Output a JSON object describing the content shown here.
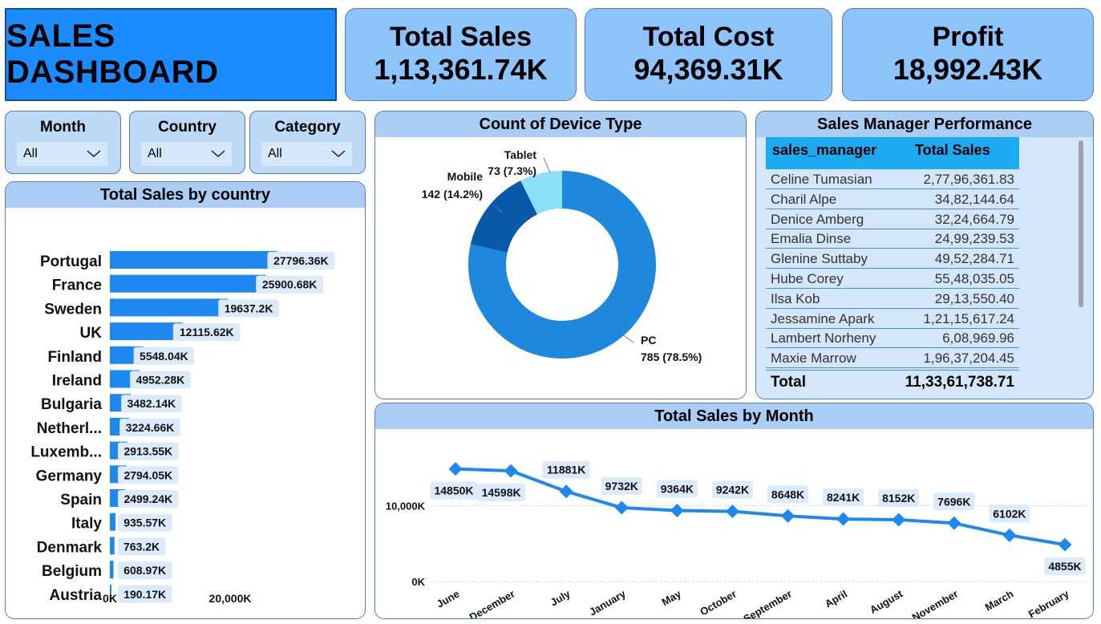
{
  "title": "SALES DASHBOARD",
  "kpis": [
    {
      "label": "Total Sales",
      "value": "1,13,361.74K"
    },
    {
      "label": "Total Cost",
      "value": "94,369.31K"
    },
    {
      "label": "Profit",
      "value": "18,992.43K"
    }
  ],
  "slicers": [
    {
      "label": "Month",
      "value": "All"
    },
    {
      "label": "Country",
      "value": "All"
    },
    {
      "label": "Category",
      "value": "All"
    }
  ],
  "colors": {
    "accent": "#1a8cff",
    "bar": "#1e88f0",
    "panel_header": "#a9cdf5",
    "donut_pc": "#1e88dc",
    "donut_mobile": "#0a58a8",
    "donut_tablet": "#8be0f8"
  },
  "country_chart": {
    "title": "Total Sales by country",
    "ticks": [
      "0K",
      "20,000K"
    ],
    "chart_data": {
      "type": "bar",
      "orientation": "horizontal",
      "categories": [
        "Portugal",
        "France",
        "Sweden",
        "UK",
        "Finland",
        "Ireland",
        "Bulgaria",
        "Netherl...",
        "Luxemb...",
        "Germany",
        "Spain",
        "Italy",
        "Denmark",
        "Belgium",
        "Austria"
      ],
      "values": [
        27796.36,
        25900.68,
        19637.2,
        12115.62,
        5548.04,
        4952.28,
        3482.14,
        3224.66,
        2913.55,
        2794.05,
        2499.24,
        935.57,
        763.2,
        608.97,
        190.17
      ],
      "labels": [
        "27796.36K",
        "25900.68K",
        "19637.2K",
        "12115.62K",
        "5548.04K",
        "4952.28K",
        "3482.14K",
        "3224.66K",
        "2913.55K",
        "2794.05K",
        "2499.24K",
        "935.57K",
        "763.2K",
        "608.97K",
        "190.17K"
      ],
      "xlim": [
        0,
        28000
      ]
    }
  },
  "device_chart": {
    "title": "Count of Device Type",
    "chart_data": {
      "type": "pie",
      "donut": true,
      "slices": [
        {
          "name": "PC",
          "value": 785,
          "label": "785 (78.5%)"
        },
        {
          "name": "Mobile",
          "value": 142,
          "label": "142 (14.2%)"
        },
        {
          "name": "Tablet",
          "value": 73,
          "label": "73 (7.3%)"
        }
      ]
    }
  },
  "manager_table": {
    "title": "Sales Manager Performance",
    "headers": [
      "sales_manager",
      "Total Sales"
    ],
    "rows": [
      {
        "name": "Celine Tumasian",
        "value": "2,77,96,361.83"
      },
      {
        "name": "Charil Alpe",
        "value": "34,82,144.64"
      },
      {
        "name": "Denice Amberg",
        "value": "32,24,664.79"
      },
      {
        "name": "Emalia Dinse",
        "value": "24,99,239.53"
      },
      {
        "name": "Glenine Suttaby",
        "value": "49,52,284.71"
      },
      {
        "name": "Hube Corey",
        "value": "55,48,035.05"
      },
      {
        "name": "Ilsa Kob",
        "value": "29,13,550.40"
      },
      {
        "name": "Jessamine Apark",
        "value": "1,21,15,617.24"
      },
      {
        "name": "Lambert Norheny",
        "value": "6,08,969.96"
      },
      {
        "name": "Maxie Marrow",
        "value": "1,96,37,204.45"
      }
    ],
    "total_label": "Total",
    "total_value": "11,33,61,738.71"
  },
  "month_chart": {
    "title": "Total Sales by Month",
    "yticks": [
      "10,000K",
      "0K"
    ],
    "chart_data": {
      "type": "line",
      "categories": [
        "June",
        "December",
        "July",
        "January",
        "May",
        "October",
        "September",
        "April",
        "August",
        "November",
        "March",
        "February"
      ],
      "values": [
        14850,
        14598,
        11881,
        9732,
        9364,
        9242,
        8648,
        8241,
        8152,
        7696,
        6102,
        4855
      ],
      "labels": [
        "14850K",
        "14598K",
        "11881K",
        "9732K",
        "9364K",
        "9242K",
        "8648K",
        "8241K",
        "8152K",
        "7696K",
        "6102K",
        "4855K"
      ],
      "ylim": [
        0,
        16000
      ]
    }
  }
}
